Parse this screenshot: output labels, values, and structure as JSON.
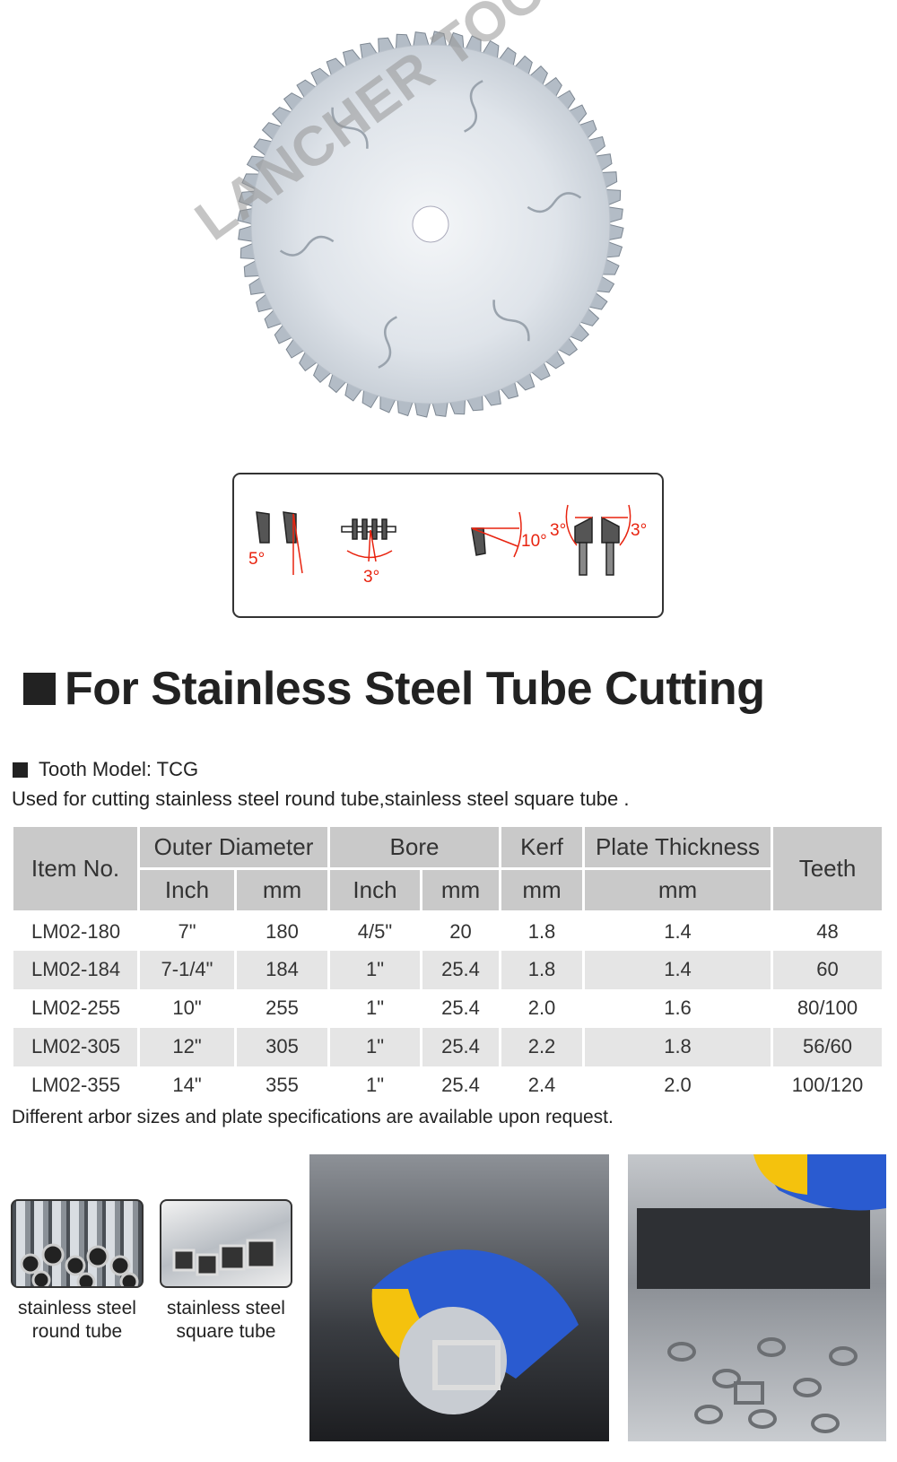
{
  "watermark": "LANCHER TOOLS",
  "diagram": {
    "angles": [
      "5°",
      "3°",
      "10°",
      "3°",
      "3°"
    ],
    "accent": "#e8230f"
  },
  "heading": "For Stainless Steel Tube Cutting",
  "tooth_model": "Tooth Model: TCG",
  "usage": "Used for cutting stainless steel round tube,stainless steel square tube .",
  "table": {
    "headers": {
      "item": "Item No.",
      "outer": "Outer Diameter",
      "bore": "Bore",
      "kerf": "Kerf",
      "plate": "Plate Thickness",
      "teeth": "Teeth",
      "sub": [
        "Inch",
        "mm",
        "Inch",
        "mm",
        "mm",
        "mm"
      ]
    },
    "rows": [
      [
        "LM02-180",
        "7\"",
        "180",
        "4/5\"",
        "20",
        "1.8",
        "1.4",
        "48"
      ],
      [
        "LM02-184",
        "7-1/4\"",
        "184",
        "1\"",
        "25.4",
        "1.8",
        "1.4",
        "60"
      ],
      [
        "LM02-255",
        "10\"",
        "255",
        "1\"",
        "25.4",
        "2.0",
        "1.6",
        "80/100"
      ],
      [
        "LM02-305",
        "12\"",
        "305",
        "1\"",
        "25.4",
        "2.2",
        "1.8",
        "56/60"
      ],
      [
        "LM02-355",
        "14\"",
        "355",
        "1\"",
        "25.4",
        "2.4",
        "2.0",
        "100/120"
      ]
    ]
  },
  "note": "Different arbor sizes and plate specifications are available upon request.",
  "applications": [
    {
      "caption_1": "stainless steel",
      "caption_2": "round tube"
    },
    {
      "caption_1": "stainless steel",
      "caption_2": "square tube"
    }
  ]
}
